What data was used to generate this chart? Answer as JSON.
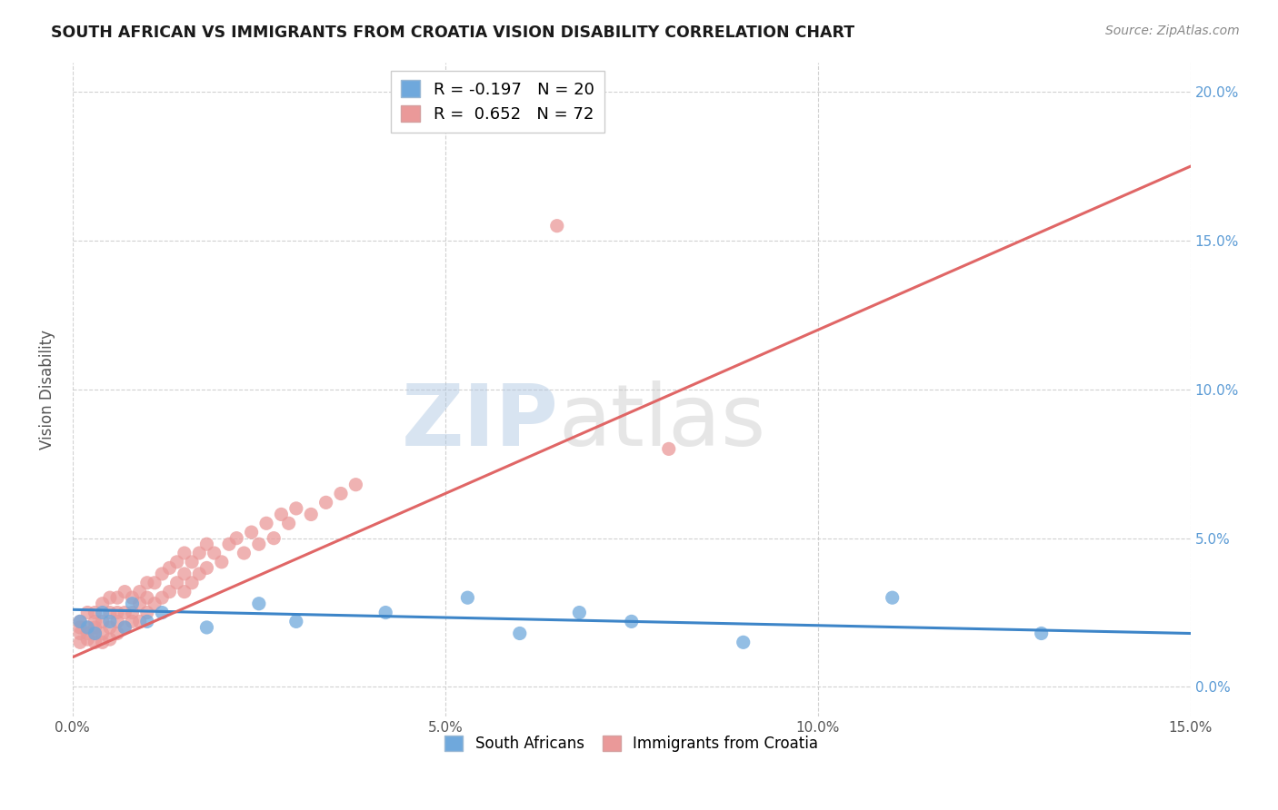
{
  "title": "SOUTH AFRICAN VS IMMIGRANTS FROM CROATIA VISION DISABILITY CORRELATION CHART",
  "source": "Source: ZipAtlas.com",
  "ylabel": "Vision Disability",
  "x_min": 0.0,
  "x_max": 0.15,
  "y_min": -0.01,
  "y_max": 0.21,
  "blue_color": "#6fa8dc",
  "pink_color": "#ea9999",
  "blue_line_color": "#3d85c8",
  "pink_line_color": "#e06666",
  "legend_blue_label": "R = -0.197   N = 20",
  "legend_pink_label": "R =  0.652   N = 72",
  "legend_blue_series": "South Africans",
  "legend_pink_series": "Immigrants from Croatia",
  "watermark_zip": "ZIP",
  "watermark_atlas": "atlas",
  "background_color": "#ffffff",
  "grid_color": "#cccccc",
  "blue_x": [
    0.001,
    0.002,
    0.003,
    0.004,
    0.005,
    0.007,
    0.008,
    0.01,
    0.012,
    0.018,
    0.025,
    0.03,
    0.042,
    0.053,
    0.06,
    0.068,
    0.075,
    0.09,
    0.11,
    0.13
  ],
  "blue_y": [
    0.022,
    0.02,
    0.018,
    0.025,
    0.022,
    0.02,
    0.028,
    0.022,
    0.025,
    0.02,
    0.028,
    0.022,
    0.025,
    0.03,
    0.018,
    0.025,
    0.022,
    0.015,
    0.03,
    0.018
  ],
  "pink_x": [
    0.001,
    0.001,
    0.001,
    0.001,
    0.002,
    0.002,
    0.002,
    0.002,
    0.003,
    0.003,
    0.003,
    0.003,
    0.003,
    0.004,
    0.004,
    0.004,
    0.004,
    0.005,
    0.005,
    0.005,
    0.005,
    0.006,
    0.006,
    0.006,
    0.006,
    0.007,
    0.007,
    0.007,
    0.008,
    0.008,
    0.008,
    0.009,
    0.009,
    0.009,
    0.01,
    0.01,
    0.01,
    0.011,
    0.011,
    0.012,
    0.012,
    0.013,
    0.013,
    0.014,
    0.014,
    0.015,
    0.015,
    0.015,
    0.016,
    0.016,
    0.017,
    0.017,
    0.018,
    0.018,
    0.019,
    0.02,
    0.021,
    0.022,
    0.023,
    0.024,
    0.025,
    0.026,
    0.027,
    0.028,
    0.029,
    0.03,
    0.032,
    0.034,
    0.036,
    0.038,
    0.065,
    0.08
  ],
  "pink_y": [
    0.015,
    0.018,
    0.02,
    0.022,
    0.016,
    0.018,
    0.02,
    0.025,
    0.015,
    0.018,
    0.02,
    0.022,
    0.025,
    0.015,
    0.018,
    0.022,
    0.028,
    0.016,
    0.02,
    0.025,
    0.03,
    0.018,
    0.022,
    0.025,
    0.03,
    0.02,
    0.025,
    0.032,
    0.022,
    0.025,
    0.03,
    0.022,
    0.028,
    0.032,
    0.025,
    0.03,
    0.035,
    0.028,
    0.035,
    0.03,
    0.038,
    0.032,
    0.04,
    0.035,
    0.042,
    0.032,
    0.038,
    0.045,
    0.035,
    0.042,
    0.038,
    0.045,
    0.04,
    0.048,
    0.045,
    0.042,
    0.048,
    0.05,
    0.045,
    0.052,
    0.048,
    0.055,
    0.05,
    0.058,
    0.055,
    0.06,
    0.058,
    0.062,
    0.065,
    0.068,
    0.155,
    0.08
  ],
  "blue_trend_x": [
    0.0,
    0.15
  ],
  "blue_trend_y": [
    0.026,
    0.018
  ],
  "pink_trend_x": [
    0.0,
    0.15
  ],
  "pink_trend_y": [
    0.01,
    0.175
  ]
}
